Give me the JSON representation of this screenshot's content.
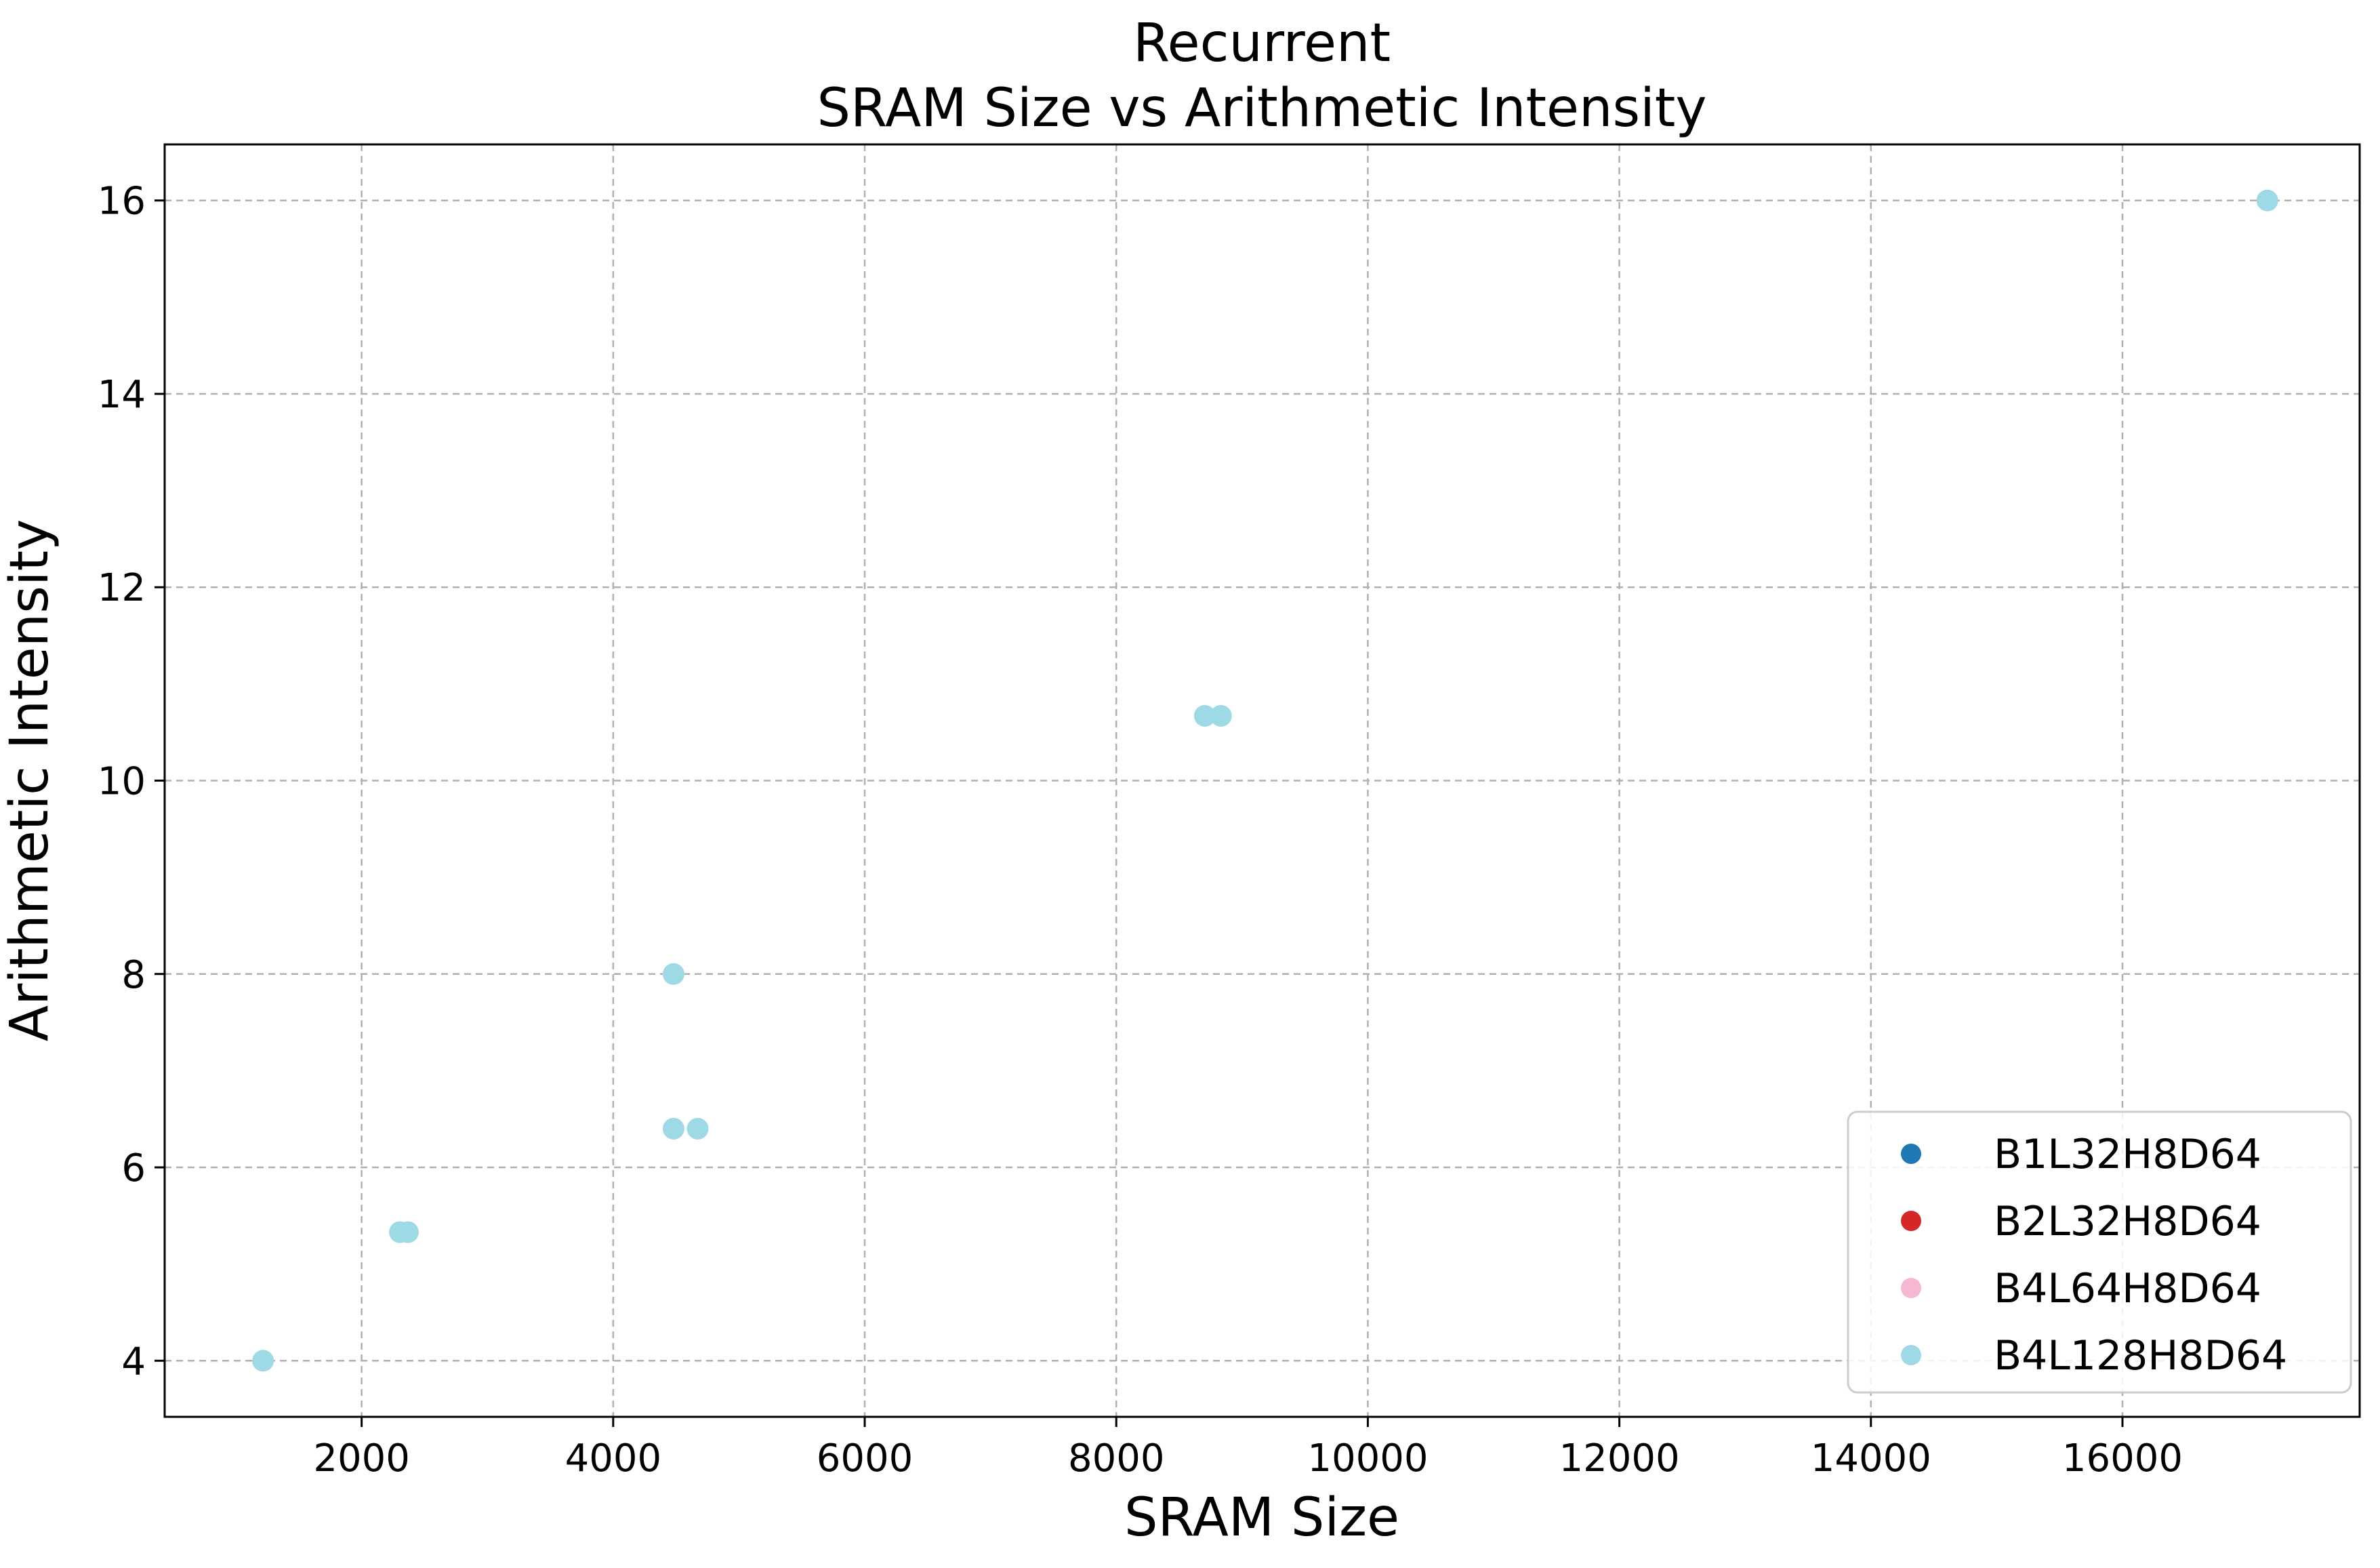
{
  "chart_data": {
    "type": "scatter",
    "title": "Recurrent",
    "subtitle": "SRAM Size vs Arithmetic Intensity",
    "xlabel": "SRAM Size",
    "ylabel": "Arithmetic Intensity",
    "xlim": [
      434,
      17886
    ],
    "ylim": [
      3.42,
      16.58
    ],
    "x_ticks": [
      2000,
      4000,
      6000,
      8000,
      10000,
      12000,
      14000,
      16000
    ],
    "x_tick_labels": [
      "2000",
      "4000",
      "6000",
      "8000",
      "10000",
      "12000",
      "14000",
      "16000"
    ],
    "y_ticks": [
      4,
      6,
      8,
      10,
      12,
      14,
      16
    ],
    "y_tick_labels": [
      "4",
      "6",
      "8",
      "10",
      "12",
      "14",
      "16"
    ],
    "grid": true,
    "legend_position": "lower-right",
    "series": [
      {
        "name": "B1L32H8D64",
        "color": "#1f77b4",
        "points": []
      },
      {
        "name": "B2L32H8D64",
        "color": "#d62728",
        "points": []
      },
      {
        "name": "B4L64H8D64",
        "color": "#f7b6d2",
        "points": []
      },
      {
        "name": "B4L128H8D64",
        "color": "#9edae5",
        "points": [
          [
            1216,
            4.0
          ],
          [
            2304,
            5.33
          ],
          [
            2368,
            5.33
          ],
          [
            4480,
            6.4
          ],
          [
            4672,
            6.4
          ],
          [
            4480,
            8.0
          ],
          [
            8704,
            10.67
          ],
          [
            8832,
            10.67
          ],
          [
            17152,
            16.0
          ]
        ]
      }
    ]
  }
}
